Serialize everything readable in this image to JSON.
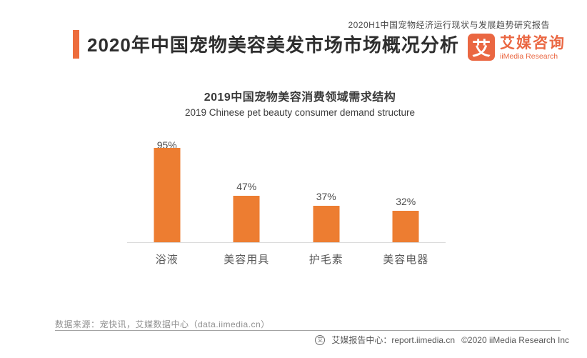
{
  "page": {
    "report_series": "2020H1中国宠物经济运行现状与发展趋势研究报告",
    "title": "2020年中国宠物美容美发市场市场概况分析",
    "logo": {
      "mark": "艾",
      "name_cn": "艾媒咨询",
      "name_en": "iiMedia Research"
    }
  },
  "chart_data": {
    "type": "bar",
    "title": "2019中国宠物美容消费领域需求结构",
    "subtitle": "2019 Chinese pet beauty consumer demand structure",
    "categories": [
      "浴液",
      "美容用具",
      "护毛素",
      "美容电器"
    ],
    "values": [
      95,
      47,
      37,
      32
    ],
    "value_labels": [
      "95%",
      "47%",
      "37%",
      "32%"
    ],
    "unit": "%",
    "ylim": [
      0,
      100
    ],
    "grid": false,
    "legend": false,
    "bar_color": "#ED7D31",
    "axis_line_color": "#dadada"
  },
  "footer": {
    "source": "数据来源：宠快讯，艾媒数据中心（data.iimedia.cn）",
    "badge": "艾",
    "report_center": "艾媒报告中心：report.iimedia.cn",
    "copyright": "©2020  iiMedia Research Inc"
  },
  "colors": {
    "accent_orange": "#ED6C3C",
    "logo_orange": "#EA6742",
    "bar_orange": "#ED7D31"
  }
}
